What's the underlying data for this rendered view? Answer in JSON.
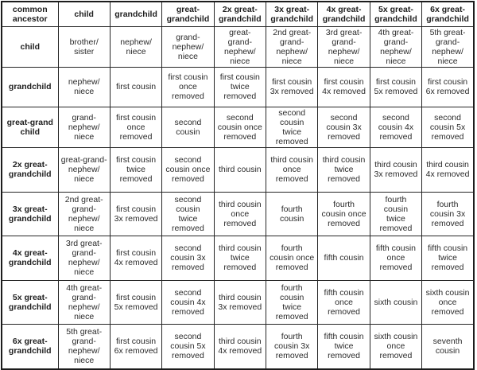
{
  "colors": {
    "background": "#ffffff",
    "border_outer": "#1c1c1c",
    "border_inner": "#262626",
    "text": "#2b2b2b",
    "header_text": "#1e1e1e"
  },
  "table": {
    "corner_header": "common\nancestor",
    "column_headers": [
      "child",
      "grandchild",
      "great-\ngrandchild",
      "2x great-\ngrandchild",
      "3x great-\ngrandchild",
      "4x great-\ngrandchild",
      "5x great-\ngrandchild",
      "6x great-\ngrandchild"
    ],
    "rows": [
      {
        "label": "child",
        "cells": [
          "brother/\nsister",
          "nephew/\nniece",
          "grand-\nnephew/\nniece",
          "great-\ngrand-\nnephew/\nniece",
          "2nd great-\ngrand-\nnephew/\nniece",
          "3rd great-\ngrand-\nnephew/\nniece",
          "4th great-\ngrand-\nnephew/\nniece",
          "5th great-\ngrand-\nnephew/\nniece"
        ]
      },
      {
        "label": "grandchild",
        "cells": [
          "nephew/\nniece",
          "first cousin",
          "first cousin\nonce\nremoved",
          "first cousin\ntwice\nremoved",
          "first cousin\n3x removed",
          "first cousin\n4x removed",
          "first cousin\n5x removed",
          "first cousin\n6x removed"
        ]
      },
      {
        "label": "great-grand\nchild",
        "cells": [
          "grand-\nnephew/\nniece",
          "first cousin\nonce\nremoved",
          "second\ncousin",
          "second\ncousin once\nremoved",
          "second\ncousin\ntwice\nremoved",
          "second\ncousin 3x\nremoved",
          "second\ncousin 4x\nremoved",
          "second\ncousin 5x\nremoved"
        ]
      },
      {
        "label": "2x great-\ngrandchild",
        "cells": [
          "great-grand-\nnephew/\nniece",
          "first cousin\ntwice\nremoved",
          "second\ncousin once\nremoved",
          "third cousin",
          "third cousin\nonce\nremoved",
          "third cousin\ntwice\nremoved",
          "third cousin\n3x removed",
          "third cousin\n4x removed"
        ]
      },
      {
        "label": "3x great-\ngrandchild",
        "cells": [
          "2nd great-\ngrand-\nnephew/\nniece",
          "first cousin\n3x removed",
          "second\ncousin\ntwice\nremoved",
          "third cousin\nonce\nremoved",
          "fourth\ncousin",
          "fourth\ncousin once\nremoved",
          "fourth\ncousin\ntwice\nremoved",
          "fourth\ncousin 3x\nremoved"
        ]
      },
      {
        "label": "4x great-\ngrandchild",
        "cells": [
          "3rd great-\ngrand-\nnephew/\nniece",
          "first cousin\n4x removed",
          "second\ncousin 3x\nremoved",
          "third cousin\ntwice\nremoved",
          "fourth\ncousin once\nremoved",
          "fifth cousin",
          "fifth cousin\nonce\nremoved",
          "fifth cousin\ntwice\nremoved"
        ]
      },
      {
        "label": "5x great-\ngrandchild",
        "cells": [
          "4th great-\ngrand-\nnephew/\nniece",
          "first cousin\n5x removed",
          "second\ncousin 4x\nremoved",
          "third cousin\n3x removed",
          "fourth\ncousin\ntwice\nremoved",
          "fifth cousin\nonce\nremoved",
          "sixth cousin",
          "sixth cousin\nonce\nremoved"
        ]
      },
      {
        "label": "6x great-\ngrandchild",
        "cells": [
          "5th great-\ngrand-\nnephew/\nniece",
          "first cousin\n6x removed",
          "second\ncousin 5x\nremoved",
          "third cousin\n4x removed",
          "fourth\ncousin 3x\nremoved",
          "fifth cousin\ntwice\nremoved",
          "sixth cousin\nonce\nremoved",
          "seventh\ncousin"
        ]
      }
    ]
  }
}
